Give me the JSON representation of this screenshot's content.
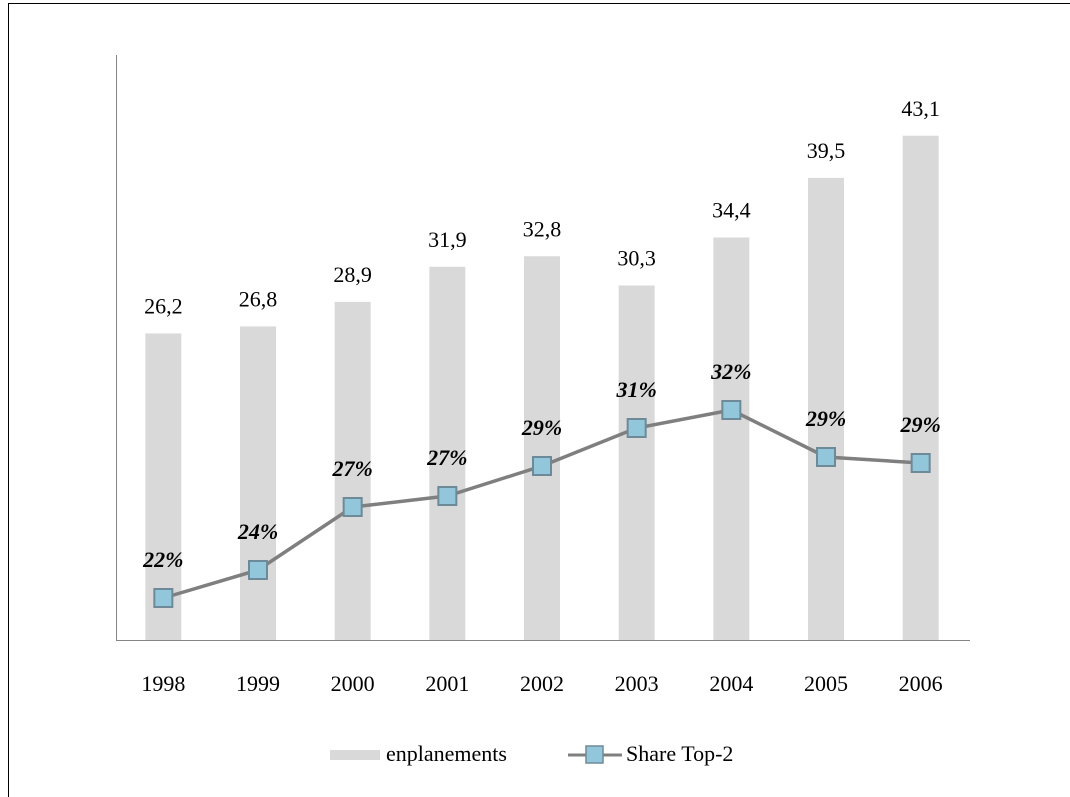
{
  "chart_data": {
    "type": "combo",
    "categories": [
      "1998",
      "1999",
      "2000",
      "2001",
      "2002",
      "2003",
      "2004",
      "2005",
      "2006"
    ],
    "series": [
      {
        "name": "enplanements",
        "type": "bar",
        "color": "#d9d9d9",
        "values": [
          26.2,
          26.8,
          28.9,
          31.9,
          32.8,
          30.3,
          34.4,
          39.5,
          43.1
        ],
        "value_labels": [
          "26,2",
          "26,8",
          "28,9",
          "31,9",
          "32,8",
          "30,3",
          "34,4",
          "39,5",
          "43,1"
        ]
      },
      {
        "name": "Share Top-2",
        "type": "line",
        "axis": "y2",
        "color": "#7f7f7f",
        "marker_color": "#92c6da",
        "values": [
          22.3,
          23.7,
          26.85,
          27.4,
          28.9,
          30.8,
          31.7,
          29.35,
          29.05
        ],
        "value_labels": [
          "22%",
          "24%",
          "27%",
          "27%",
          "29%",
          "31%",
          "32%",
          "29%",
          "29%"
        ]
      }
    ],
    "ylim": [
      0,
      50
    ],
    "y2lim": [
      20.2,
      49.45
    ],
    "legend": "bottom"
  }
}
